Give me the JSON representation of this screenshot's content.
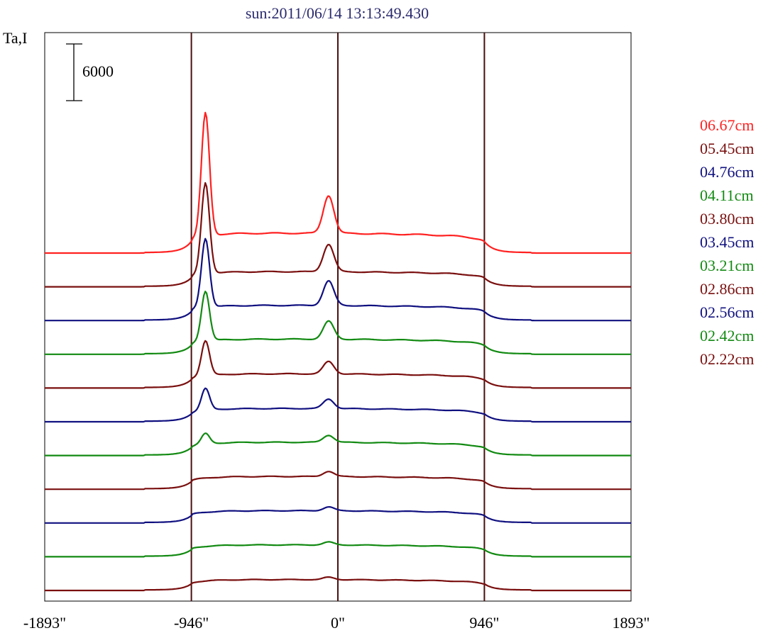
{
  "chart_data": {
    "type": "line",
    "title": "sun:2011/06/14 13:13:49.430",
    "ylabel": "Ta,I",
    "scale_bar_label": "6000",
    "x_ticks": [
      "-1893\"",
      "-946\"",
      "0\"",
      "946\"",
      "1893\""
    ],
    "x_tick_values": [
      -1893,
      -946,
      0,
      946,
      1893
    ],
    "xlim": [
      -1893,
      1893
    ],
    "vertical_lines_at": [
      -946,
      0,
      946
    ],
    "colors": {
      "red": "#ff2020",
      "darkred": "#7a0f0f",
      "blue": "#101080",
      "green": "#128a12"
    },
    "series": [
      {
        "name": "06.67cm",
        "color": "#ff2020",
        "peak_limb": 13000,
        "peak_center": 4000,
        "plateau": 2100
      },
      {
        "name": "05.45cm",
        "color": "#7a0f0f",
        "peak_limb": 9600,
        "peak_center": 2900,
        "plateau": 1600
      },
      {
        "name": "04.76cm",
        "color": "#101080",
        "peak_limb": 7300,
        "peak_center": 2600,
        "plateau": 1600
      },
      {
        "name": "04.11cm",
        "color": "#128a12",
        "peak_limb": 5300,
        "peak_center": 1900,
        "plateau": 1600
      },
      {
        "name": "03.80cm",
        "color": "#7a0f0f",
        "peak_limb": 3700,
        "peak_center": 1300,
        "plateau": 1500
      },
      {
        "name": "03.45cm",
        "color": "#101080",
        "peak_limb": 2300,
        "peak_center": 1000,
        "plateau": 1400
      },
      {
        "name": "03.21cm",
        "color": "#128a12",
        "peak_limb": 1100,
        "peak_center": 750,
        "plateau": 1400
      },
      {
        "name": "02.86cm",
        "color": "#7a0f0f",
        "peak_limb": 0,
        "peak_center": 550,
        "plateau": 1350
      },
      {
        "name": "02.56cm",
        "color": "#101080",
        "peak_limb": 0,
        "peak_center": 400,
        "plateau": 1300
      },
      {
        "name": "02.42cm",
        "color": "#128a12",
        "peak_limb": 0,
        "peak_center": 300,
        "plateau": 1250
      },
      {
        "name": "02.22cm",
        "color": "#7a0f0f",
        "peak_limb": 0,
        "peak_center": 250,
        "plateau": 1150
      }
    ]
  }
}
